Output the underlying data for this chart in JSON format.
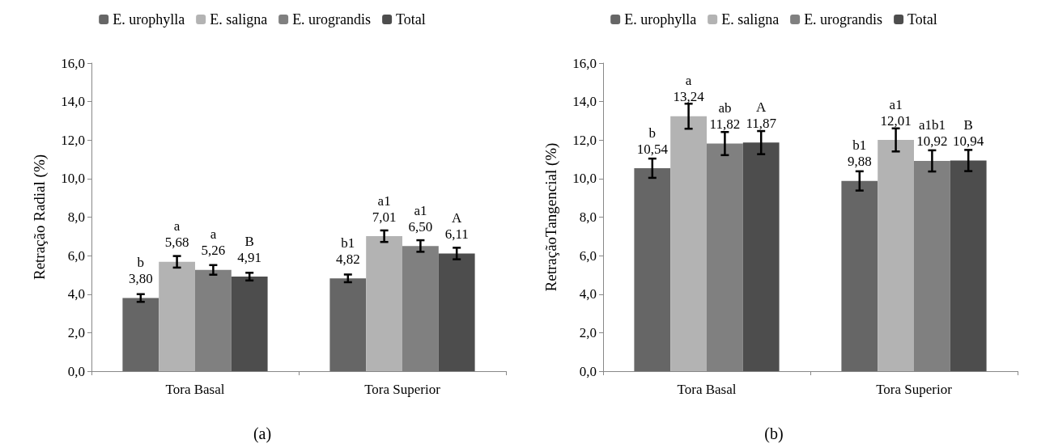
{
  "chart_data": [
    {
      "type": "bar",
      "ylabel": "Retração Radial (%)",
      "categories": [
        "Tora Basal",
        "Tora Superior"
      ],
      "series": [
        {
          "name": "E. urophylla",
          "color": "#666666",
          "values": [
            3.8,
            4.82
          ],
          "errors": [
            0.2,
            0.2
          ],
          "value_labels": [
            "b\n3,80",
            "b1\n4,82"
          ]
        },
        {
          "name": "E. saligna",
          "color": "#b3b3b3",
          "values": [
            5.68,
            7.01
          ],
          "errors": [
            0.3,
            0.3
          ],
          "value_labels": [
            "a\n5,68",
            "a1\n7,01"
          ]
        },
        {
          "name": "E. urograndis",
          "color": "#808080",
          "values": [
            5.26,
            6.5
          ],
          "errors": [
            0.25,
            0.3
          ],
          "value_labels": [
            "a\n5,26",
            "a1\n6,50"
          ]
        },
        {
          "name": "Total",
          "color": "#4d4d4d",
          "values": [
            4.91,
            6.11
          ],
          "errors": [
            0.2,
            0.3
          ],
          "value_labels": [
            "B\n4,91",
            "A\n6,11"
          ]
        }
      ],
      "ylim": [
        0,
        16
      ],
      "yticks": [
        {
          "value": 0,
          "label": "0,0"
        },
        {
          "value": 2,
          "label": "2,0"
        },
        {
          "value": 4,
          "label": "4,0"
        },
        {
          "value": 6,
          "label": "6,0"
        },
        {
          "value": 8,
          "label": "8,0"
        },
        {
          "value": 10,
          "label": "10,0"
        },
        {
          "value": 12,
          "label": "12,0"
        },
        {
          "value": 14,
          "label": "14,0"
        },
        {
          "value": 16,
          "label": "16,0"
        }
      ],
      "grid": false,
      "legend": "top",
      "annotations": [
        "(a)"
      ]
    },
    {
      "type": "bar",
      "ylabel": "RetraçãoTangencial (%)",
      "categories": [
        "Tora Basal",
        "Tora Superior"
      ],
      "series": [
        {
          "name": "E. urophylla",
          "color": "#666666",
          "values": [
            10.54,
            9.88
          ],
          "errors": [
            0.5,
            0.5
          ],
          "value_labels": [
            "b\n10,54",
            "b1\n9,88"
          ]
        },
        {
          "name": "E. saligna",
          "color": "#b3b3b3",
          "values": [
            13.24,
            12.01
          ],
          "errors": [
            0.65,
            0.6
          ],
          "value_labels": [
            "a\n13,24",
            "a1\n12,01"
          ]
        },
        {
          "name": "E. urograndis",
          "color": "#808080",
          "values": [
            11.82,
            10.92
          ],
          "errors": [
            0.6,
            0.55
          ],
          "value_labels": [
            "ab\n11,82",
            "a1b1\n10,92"
          ]
        },
        {
          "name": "Total",
          "color": "#4d4d4d",
          "values": [
            11.87,
            10.94
          ],
          "errors": [
            0.6,
            0.55
          ],
          "value_labels": [
            "A\n11,87",
            "B\n10,94"
          ]
        }
      ],
      "ylim": [
        0,
        16
      ],
      "yticks": [
        {
          "value": 0,
          "label": "0,0"
        },
        {
          "value": 2,
          "label": "2,0"
        },
        {
          "value": 4,
          "label": "4,0"
        },
        {
          "value": 6,
          "label": "6,0"
        },
        {
          "value": 8,
          "label": "8,0"
        },
        {
          "value": 10,
          "label": "10,0"
        },
        {
          "value": 12,
          "label": "12,0"
        },
        {
          "value": 14,
          "label": "14,0"
        },
        {
          "value": 16,
          "label": "16,0"
        }
      ],
      "grid": false,
      "legend": "top",
      "annotations": [
        "(b)"
      ]
    }
  ]
}
